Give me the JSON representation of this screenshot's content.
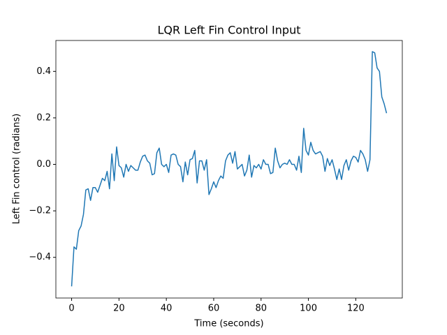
{
  "chart_data": {
    "type": "line",
    "title": "LQR Left Fin Control Input",
    "x_label": "Time (seconds)",
    "y_label": "Left Fin control (radians)",
    "x": [
      0,
      1,
      2,
      3,
      4,
      5,
      6,
      7,
      8,
      9,
      10,
      11,
      12,
      13,
      14,
      15,
      16,
      17,
      18,
      19,
      20,
      21,
      22,
      23,
      24,
      25,
      26,
      27,
      28,
      29,
      30,
      31,
      32,
      33,
      34,
      35,
      36,
      37,
      38,
      39,
      40,
      41,
      42,
      43,
      44,
      45,
      46,
      47,
      48,
      49,
      50,
      51,
      52,
      53,
      54,
      55,
      56,
      57,
      58,
      59,
      60,
      61,
      62,
      63,
      64,
      65,
      66,
      67,
      68,
      69,
      70,
      71,
      72,
      73,
      74,
      75,
      76,
      77,
      78,
      79,
      80,
      81,
      82,
      83,
      84,
      85,
      86,
      87,
      88,
      89,
      90,
      91,
      92,
      93,
      94,
      95,
      96,
      97,
      98,
      99,
      100,
      101,
      102,
      103,
      104,
      105,
      106,
      107,
      108,
      109,
      110,
      111,
      112,
      113,
      114,
      115,
      116,
      117,
      118,
      119,
      120,
      121,
      122,
      123,
      124,
      125,
      126,
      127,
      128,
      129,
      130,
      131,
      132,
      133
    ],
    "series": [
      {
        "color": "#1f77b4",
        "values": [
          -0.525,
          -0.355,
          -0.365,
          -0.285,
          -0.265,
          -0.215,
          -0.11,
          -0.105,
          -0.155,
          -0.1,
          -0.1,
          -0.12,
          -0.09,
          -0.06,
          -0.07,
          -0.03,
          -0.105,
          0.045,
          -0.07,
          0.075,
          -0.005,
          -0.015,
          -0.055,
          0.0,
          -0.03,
          -0.005,
          -0.015,
          -0.025,
          -0.025,
          0.01,
          0.035,
          0.04,
          0.015,
          0.005,
          -0.045,
          -0.04,
          0.05,
          0.07,
          0.0,
          -0.01,
          0.0,
          -0.035,
          0.04,
          0.045,
          0.04,
          0.0,
          -0.01,
          -0.075,
          0.01,
          -0.045,
          0.02,
          0.025,
          0.06,
          -0.08,
          0.015,
          0.015,
          -0.025,
          0.02,
          -0.13,
          -0.105,
          -0.075,
          -0.1,
          -0.07,
          -0.05,
          -0.06,
          0.015,
          0.04,
          0.05,
          0.005,
          0.055,
          -0.02,
          -0.01,
          0.0,
          -0.05,
          -0.025,
          0.04,
          -0.055,
          -0.005,
          -0.015,
          0.0,
          -0.02,
          0.02,
          0.0,
          0.0,
          -0.04,
          -0.035,
          0.07,
          0.015,
          -0.015,
          0.0,
          0.005,
          0.0,
          0.02,
          0.0,
          0.0,
          -0.025,
          0.035,
          -0.035,
          0.155,
          0.06,
          0.04,
          0.095,
          0.06,
          0.045,
          0.05,
          0.055,
          0.035,
          -0.03,
          0.025,
          -0.005,
          0.02,
          -0.02,
          -0.065,
          -0.02,
          -0.065,
          -0.005,
          0.02,
          -0.025,
          0.015,
          0.035,
          0.03,
          0.01,
          0.06,
          0.045,
          0.02,
          -0.03,
          0.02,
          0.485,
          0.48,
          0.415,
          0.4,
          0.29,
          0.26,
          0.22
        ]
      }
    ],
    "xlim": [
      -6.65,
      139.65
    ],
    "ylim": [
      -0.575,
      0.533
    ],
    "xticks": [
      0,
      20,
      40,
      60,
      80,
      100,
      120
    ],
    "yticks": [
      {
        "value": -0.4,
        "label": "−0.4"
      },
      {
        "value": -0.2,
        "label": "−0.2"
      },
      {
        "value": 0,
        "label": "0.0"
      },
      0.2,
      0.4
    ],
    "grid": false
  }
}
